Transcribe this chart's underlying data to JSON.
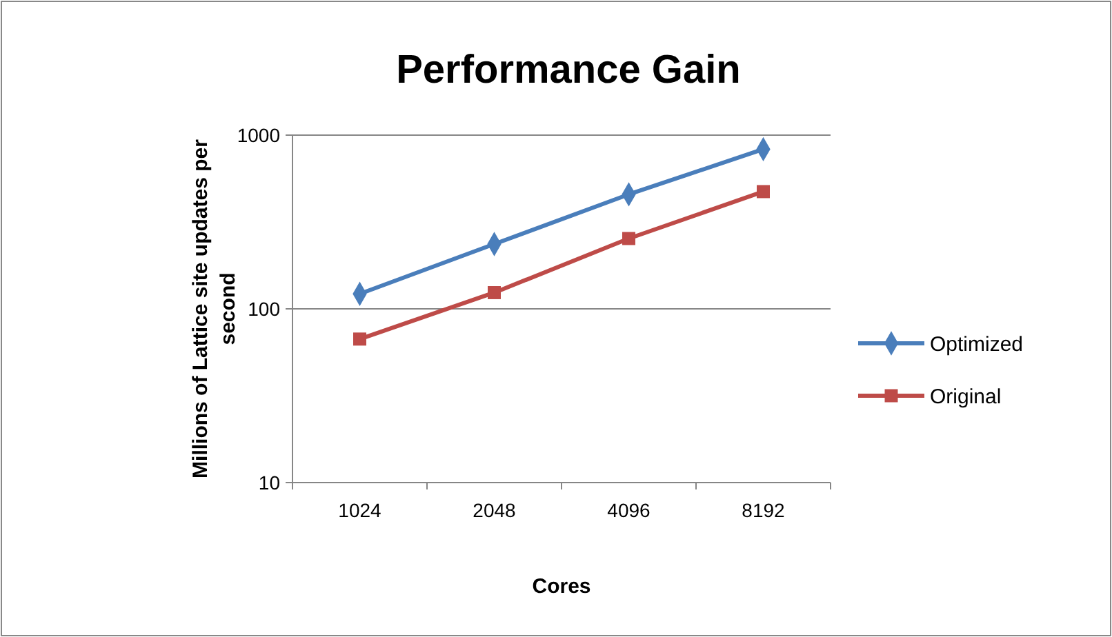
{
  "chart_data": {
    "type": "line",
    "title": "Performance Gain",
    "xlabel": "Cores",
    "ylabel": "Millions of Lattice site updates per second",
    "categories": [
      "1024",
      "2048",
      "4096",
      "8192"
    ],
    "series": [
      {
        "name": "Optimized",
        "color": "#4a7ebb",
        "values": [
          122,
          236,
          456,
          830
        ],
        "marker": "diamond"
      },
      {
        "name": "Original",
        "color": "#be4b48",
        "values": [
          67,
          124,
          254,
          473
        ],
        "marker": "square"
      }
    ],
    "log": "y",
    "ylim": [
      10,
      1000
    ],
    "yticks": [
      10,
      100,
      1000
    ],
    "grid": "y",
    "legend": "right",
    "line_style": "solid"
  }
}
